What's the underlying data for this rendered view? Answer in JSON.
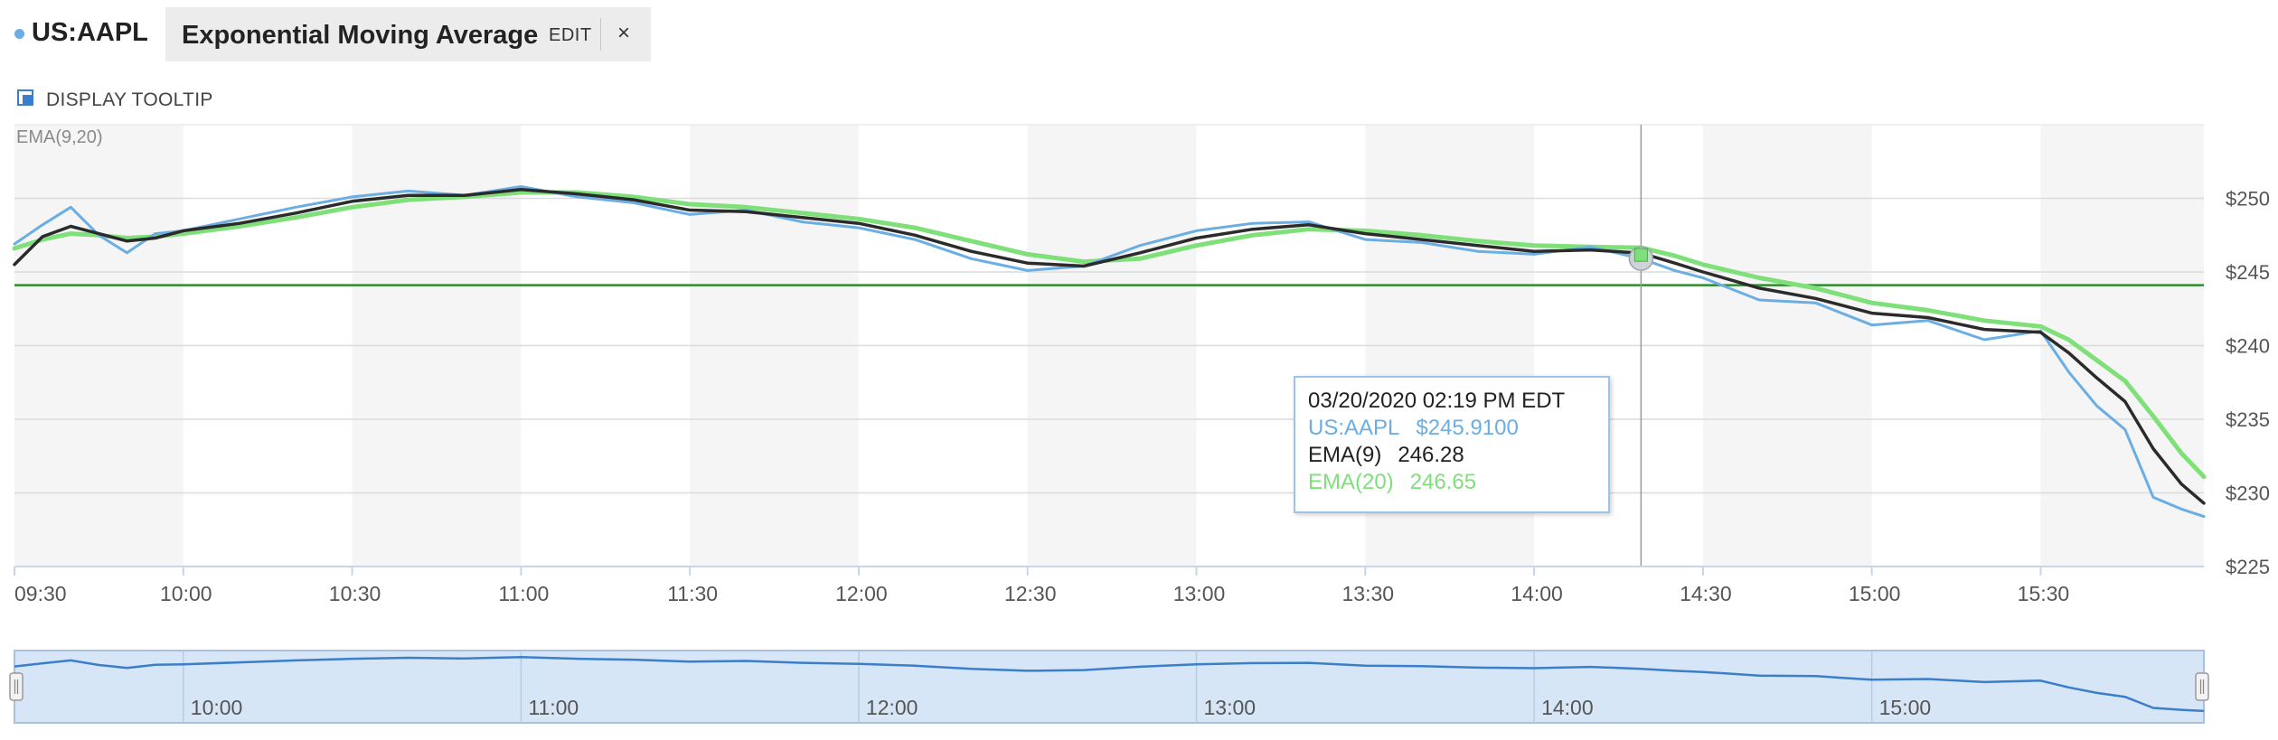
{
  "header": {
    "symbol": "US:AAPL",
    "study_name": "Exponential Moving Average",
    "edit_label": "EDIT",
    "close_label": "×"
  },
  "tooltip_toggle": {
    "label": "DISPLAY TOOLTIP",
    "checked": true
  },
  "study_label": "EMA(9,20)",
  "colors": {
    "price": "#6aaee4",
    "ema9": "#2b2b2b",
    "ema20": "#7fe07a",
    "reference_line": "#2e8b2e",
    "navigator_fill": "#d6e6f7",
    "navigator_line": "#3b7ec9"
  },
  "tooltip": {
    "date": "03/20/2020 02:19 PM EDT",
    "symbol_label": "US:AAPL",
    "symbol_value": "$245.9100",
    "ema9_label": "EMA(9)",
    "ema9_value": "246.28",
    "ema20_label": "EMA(20)",
    "ema20_value": "246.65"
  },
  "chart_data": {
    "type": "line",
    "x_start": "09:30",
    "x_end": "15:59",
    "x_ticks": [
      "09:30",
      "10:00",
      "10:30",
      "11:00",
      "11:30",
      "12:00",
      "12:30",
      "13:00",
      "13:30",
      "14:00",
      "14:30",
      "15:00",
      "15:30"
    ],
    "y_ticks": [
      "$250",
      "$245",
      "$240",
      "$235",
      "$230",
      "$225"
    ],
    "ylim": [
      225,
      255
    ],
    "reference_line_value": 244.1,
    "crosshair_time": "14:19",
    "navigator_ticks": [
      "10:00",
      "11:00",
      "12:00",
      "13:00",
      "14:00",
      "15:00"
    ],
    "series": [
      {
        "name": "US:AAPL",
        "points": [
          [
            "09:30",
            246.9
          ],
          [
            "09:35",
            248.2
          ],
          [
            "09:40",
            249.4
          ],
          [
            "09:45",
            247.5
          ],
          [
            "09:50",
            246.3
          ],
          [
            "09:55",
            247.6
          ],
          [
            "10:00",
            247.8
          ],
          [
            "10:10",
            248.6
          ],
          [
            "10:20",
            249.4
          ],
          [
            "10:30",
            250.1
          ],
          [
            "10:40",
            250.5
          ],
          [
            "10:50",
            250.2
          ],
          [
            "11:00",
            250.8
          ],
          [
            "11:10",
            250.1
          ],
          [
            "11:20",
            249.7
          ],
          [
            "11:30",
            248.9
          ],
          [
            "11:40",
            249.2
          ],
          [
            "11:50",
            248.4
          ],
          [
            "12:00",
            248.0
          ],
          [
            "12:10",
            247.2
          ],
          [
            "12:20",
            245.9
          ],
          [
            "12:30",
            245.1
          ],
          [
            "12:40",
            245.4
          ],
          [
            "12:50",
            246.8
          ],
          [
            "13:00",
            247.8
          ],
          [
            "13:10",
            248.3
          ],
          [
            "13:20",
            248.4
          ],
          [
            "13:30",
            247.2
          ],
          [
            "13:40",
            247.0
          ],
          [
            "13:50",
            246.4
          ],
          [
            "14:00",
            246.2
          ],
          [
            "14:10",
            246.7
          ],
          [
            "14:19",
            245.91
          ],
          [
            "14:25",
            245.1
          ],
          [
            "14:30",
            244.6
          ],
          [
            "14:40",
            243.1
          ],
          [
            "14:50",
            242.9
          ],
          [
            "15:00",
            241.4
          ],
          [
            "15:10",
            241.7
          ],
          [
            "15:20",
            240.4
          ],
          [
            "15:30",
            241.0
          ],
          [
            "15:35",
            238.2
          ],
          [
            "15:40",
            235.9
          ],
          [
            "15:45",
            234.3
          ],
          [
            "15:50",
            229.7
          ],
          [
            "15:55",
            228.9
          ],
          [
            "15:59",
            228.4
          ]
        ]
      },
      {
        "name": "EMA(9)",
        "points": [
          [
            "09:30",
            245.5
          ],
          [
            "09:35",
            247.4
          ],
          [
            "09:40",
            248.1
          ],
          [
            "09:45",
            247.6
          ],
          [
            "09:50",
            247.1
          ],
          [
            "09:55",
            247.3
          ],
          [
            "10:00",
            247.8
          ],
          [
            "10:10",
            248.3
          ],
          [
            "10:20",
            249.0
          ],
          [
            "10:30",
            249.8
          ],
          [
            "10:40",
            250.2
          ],
          [
            "10:50",
            250.2
          ],
          [
            "11:00",
            250.6
          ],
          [
            "11:10",
            250.3
          ],
          [
            "11:20",
            249.9
          ],
          [
            "11:30",
            249.2
          ],
          [
            "11:40",
            249.1
          ],
          [
            "11:50",
            248.7
          ],
          [
            "12:00",
            248.3
          ],
          [
            "12:10",
            247.5
          ],
          [
            "12:20",
            246.4
          ],
          [
            "12:30",
            245.6
          ],
          [
            "12:40",
            245.4
          ],
          [
            "12:50",
            246.3
          ],
          [
            "13:00",
            247.3
          ],
          [
            "13:10",
            247.9
          ],
          [
            "13:20",
            248.2
          ],
          [
            "13:30",
            247.6
          ],
          [
            "13:40",
            247.2
          ],
          [
            "13:50",
            246.8
          ],
          [
            "14:00",
            246.4
          ],
          [
            "14:10",
            246.5
          ],
          [
            "14:19",
            246.28
          ],
          [
            "14:25",
            245.6
          ],
          [
            "14:30",
            245.0
          ],
          [
            "14:40",
            243.9
          ],
          [
            "14:50",
            243.2
          ],
          [
            "15:00",
            242.2
          ],
          [
            "15:10",
            241.9
          ],
          [
            "15:20",
            241.1
          ],
          [
            "15:30",
            240.9
          ],
          [
            "15:35",
            239.5
          ],
          [
            "15:40",
            237.8
          ],
          [
            "15:45",
            236.2
          ],
          [
            "15:50",
            233.0
          ],
          [
            "15:55",
            230.6
          ],
          [
            "15:59",
            229.3
          ]
        ]
      },
      {
        "name": "EMA(20)",
        "points": [
          [
            "09:30",
            246.6
          ],
          [
            "09:35",
            247.2
          ],
          [
            "09:40",
            247.6
          ],
          [
            "09:45",
            247.5
          ],
          [
            "09:50",
            247.3
          ],
          [
            "09:55",
            247.4
          ],
          [
            "10:00",
            247.6
          ],
          [
            "10:10",
            248.1
          ],
          [
            "10:20",
            248.7
          ],
          [
            "10:30",
            249.4
          ],
          [
            "10:40",
            249.9
          ],
          [
            "10:50",
            250.1
          ],
          [
            "11:00",
            250.4
          ],
          [
            "11:10",
            250.4
          ],
          [
            "11:20",
            250.1
          ],
          [
            "11:30",
            249.6
          ],
          [
            "11:40",
            249.4
          ],
          [
            "11:50",
            249.0
          ],
          [
            "12:00",
            248.6
          ],
          [
            "12:10",
            248.0
          ],
          [
            "12:20",
            247.1
          ],
          [
            "12:30",
            246.2
          ],
          [
            "12:40",
            245.7
          ],
          [
            "12:50",
            245.9
          ],
          [
            "13:00",
            246.8
          ],
          [
            "13:10",
            247.5
          ],
          [
            "13:20",
            247.9
          ],
          [
            "13:30",
            247.8
          ],
          [
            "13:40",
            247.5
          ],
          [
            "13:50",
            247.1
          ],
          [
            "14:00",
            246.8
          ],
          [
            "14:10",
            246.7
          ],
          [
            "14:19",
            246.65
          ],
          [
            "14:25",
            246.1
          ],
          [
            "14:30",
            245.5
          ],
          [
            "14:40",
            244.6
          ],
          [
            "14:50",
            243.9
          ],
          [
            "15:00",
            242.9
          ],
          [
            "15:10",
            242.4
          ],
          [
            "15:20",
            241.7
          ],
          [
            "15:30",
            241.3
          ],
          [
            "15:35",
            240.4
          ],
          [
            "15:40",
            239.0
          ],
          [
            "15:45",
            237.6
          ],
          [
            "15:50",
            235.2
          ],
          [
            "15:55",
            232.7
          ],
          [
            "15:59",
            231.1
          ]
        ]
      }
    ]
  }
}
